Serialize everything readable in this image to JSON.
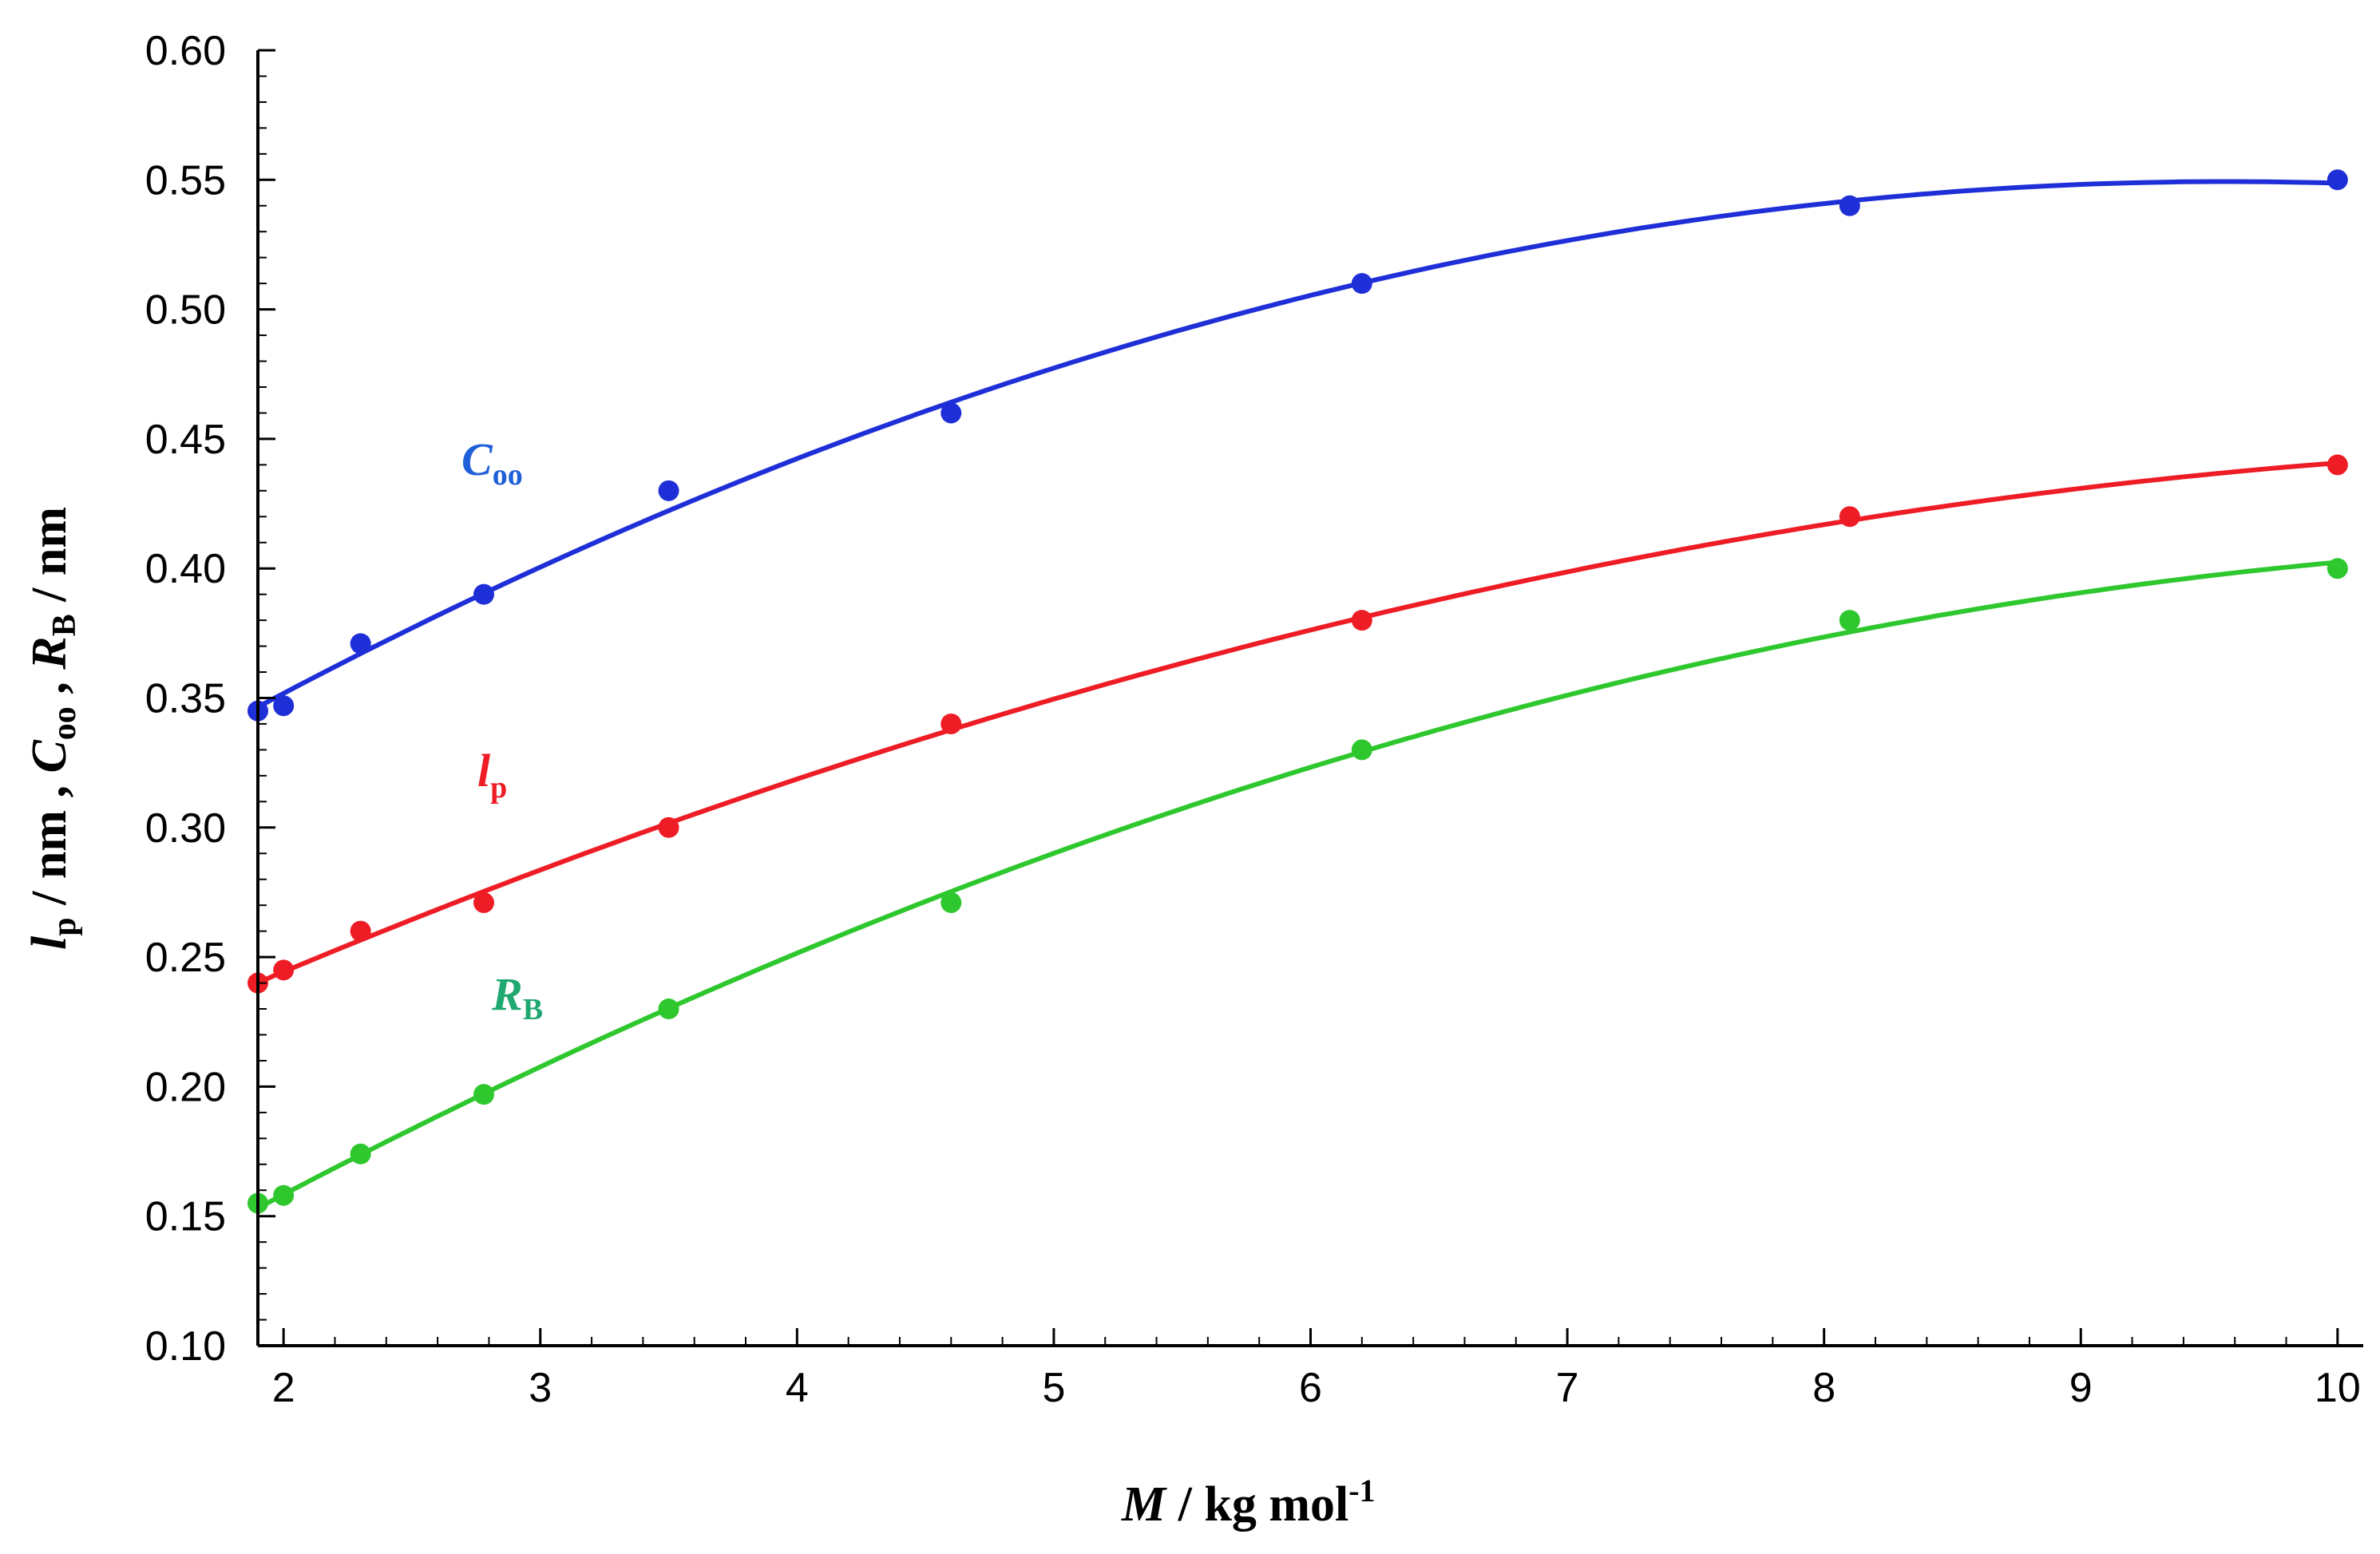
{
  "chart_data": {
    "type": "line",
    "xlim": [
      1.9,
      10.1
    ],
    "ylim": [
      0.1,
      0.6
    ],
    "xticks": [
      "2",
      "3",
      "4",
      "5",
      "6",
      "7",
      "8",
      "9",
      "10"
    ],
    "yticks": [
      "0.10",
      "0.15",
      "0.20",
      "0.25",
      "0.30",
      "0.35",
      "0.40",
      "0.45",
      "0.50",
      "0.55",
      "0.60"
    ],
    "xlabel": {
      "main": "M",
      "unit": " / kg  mol",
      "exp": "-1"
    },
    "ylabel": {
      "lp": "l",
      "lp_sub": "p",
      "s1": " / nm , ",
      "c": "C",
      "c_sub": "oo",
      "s2": " , ",
      "r": "R",
      "r_sub": "B",
      "s3": " / nm"
    },
    "grid": false,
    "series": [
      {
        "name": "C",
        "sub": "oo",
        "color": "#1f2fd8",
        "x": [
          1.9,
          2.0,
          2.3,
          2.78,
          3.5,
          4.6,
          6.2,
          8.1,
          10.0
        ],
        "y": [
          0.345,
          0.347,
          0.371,
          0.39,
          0.43,
          0.46,
          0.51,
          0.54,
          0.55
        ]
      },
      {
        "name": "l",
        "sub": "p",
        "color": "#ee1c24",
        "x": [
          1.9,
          2.0,
          2.3,
          2.78,
          3.5,
          4.6,
          6.2,
          8.1,
          10.0
        ],
        "y": [
          0.24,
          0.245,
          0.26,
          0.271,
          0.3,
          0.34,
          0.38,
          0.42,
          0.44
        ]
      },
      {
        "name": "R",
        "sub": "B",
        "color": "#2ec82e",
        "x": [
          1.9,
          2.0,
          2.3,
          2.78,
          3.5,
          4.6,
          6.2,
          8.1,
          10.0
        ],
        "y": [
          0.155,
          0.158,
          0.174,
          0.197,
          0.23,
          0.271,
          0.33,
          0.38,
          0.4
        ]
      }
    ]
  }
}
